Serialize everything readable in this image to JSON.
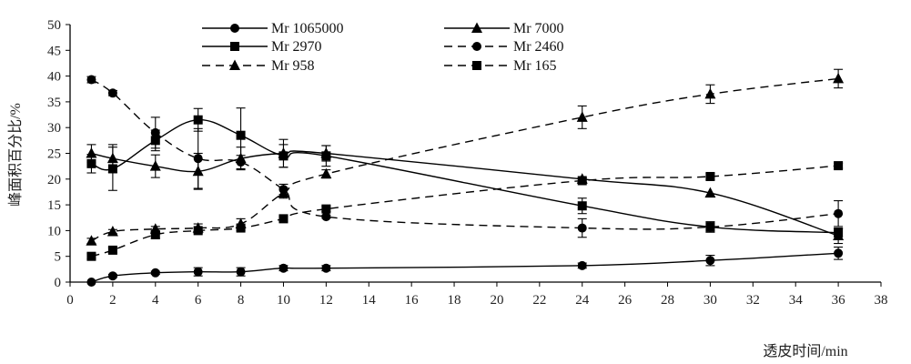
{
  "chart_data": {
    "type": "line",
    "xlabel": "透皮时间/min",
    "ylabel": "峰面积百分比/%",
    "xlim": [
      0,
      38
    ],
    "ylim": [
      0,
      50
    ],
    "xticks": [
      0,
      2,
      4,
      6,
      8,
      10,
      12,
      14,
      16,
      18,
      20,
      22,
      24,
      26,
      28,
      30,
      32,
      34,
      36,
      38
    ],
    "yticks": [
      0,
      5,
      10,
      15,
      20,
      25,
      30,
      35,
      40,
      45,
      50
    ],
    "grid": false,
    "legend_position": "top-center",
    "legend_columns": 2,
    "series": [
      {
        "name": "Mr 1065000",
        "marker": "circle",
        "line_style": "solid",
        "x": [
          1,
          2,
          4,
          6,
          8,
          10,
          12,
          24,
          30,
          36
        ],
        "y": [
          0,
          1.2,
          1.8,
          2.0,
          2.0,
          2.7,
          2.7,
          3.2,
          4.2,
          5.6
        ],
        "error": [
          0,
          0.3,
          0.3,
          0.8,
          0.8,
          0.5,
          0.5,
          0.5,
          1.0,
          1.2
        ]
      },
      {
        "name": "Mr 7000",
        "marker": "triangle",
        "line_style": "solid",
        "x": [
          1,
          2,
          4,
          6,
          8,
          10,
          12,
          24,
          30,
          36
        ],
        "y": [
          25.0,
          24.0,
          22.5,
          21.5,
          24.0,
          25.0,
          25.0,
          20.0,
          17.3,
          9.0
        ],
        "error": [
          1.7,
          2.7,
          2.2,
          3.5,
          2.2,
          2.7,
          1.5,
          0,
          0,
          1.5
        ]
      },
      {
        "name": "Mr 2970",
        "marker": "square",
        "line_style": "solid",
        "x": [
          1,
          2,
          4,
          6,
          8,
          10,
          12,
          24,
          30,
          36
        ],
        "y": [
          23.0,
          22.0,
          27.5,
          31.5,
          28.5,
          24.5,
          24.5,
          14.8,
          10.7,
          9.6
        ],
        "error": [
          1.8,
          4.2,
          2.0,
          2.2,
          5.3,
          2.2,
          2.0,
          1.5,
          1.0,
          0.8
        ]
      },
      {
        "name": "Mr 2460",
        "marker": "circle",
        "line_style": "dashed",
        "x": [
          1,
          2,
          4,
          6,
          8,
          10,
          12,
          24,
          30,
          36
        ],
        "y": [
          39.3,
          36.7,
          29.0,
          24.0,
          23.3,
          18.0,
          12.7,
          10.5,
          10.7,
          13.3
        ],
        "error": [
          0.6,
          0.5,
          3.0,
          5.8,
          1.3,
          1.0,
          0.3,
          1.8,
          1.0,
          2.5
        ]
      },
      {
        "name": "Mr 958",
        "marker": "triangle",
        "line_style": "dashed",
        "x": [
          1,
          2,
          4,
          6,
          8,
          10,
          12,
          24,
          30,
          36
        ],
        "y": [
          8.0,
          9.8,
          10.3,
          10.5,
          11.3,
          17.3,
          21.0,
          32.0,
          36.5,
          39.5
        ],
        "error": [
          0.5,
          0.4,
          0.5,
          0.8,
          1.0,
          1.0,
          0.8,
          2.2,
          1.8,
          1.8
        ]
      },
      {
        "name": "Mr 165",
        "marker": "square",
        "line_style": "dashed",
        "x": [
          1,
          2,
          4,
          6,
          8,
          10,
          12,
          24,
          30,
          36
        ],
        "y": [
          5.0,
          6.2,
          9.2,
          10.0,
          10.5,
          12.3,
          14.2,
          19.7,
          20.5,
          22.6
        ],
        "error": [
          0.5,
          0.5,
          0.7,
          0.5,
          0.5,
          0.5,
          0.5,
          0.5,
          0.6,
          0.5
        ]
      }
    ]
  }
}
